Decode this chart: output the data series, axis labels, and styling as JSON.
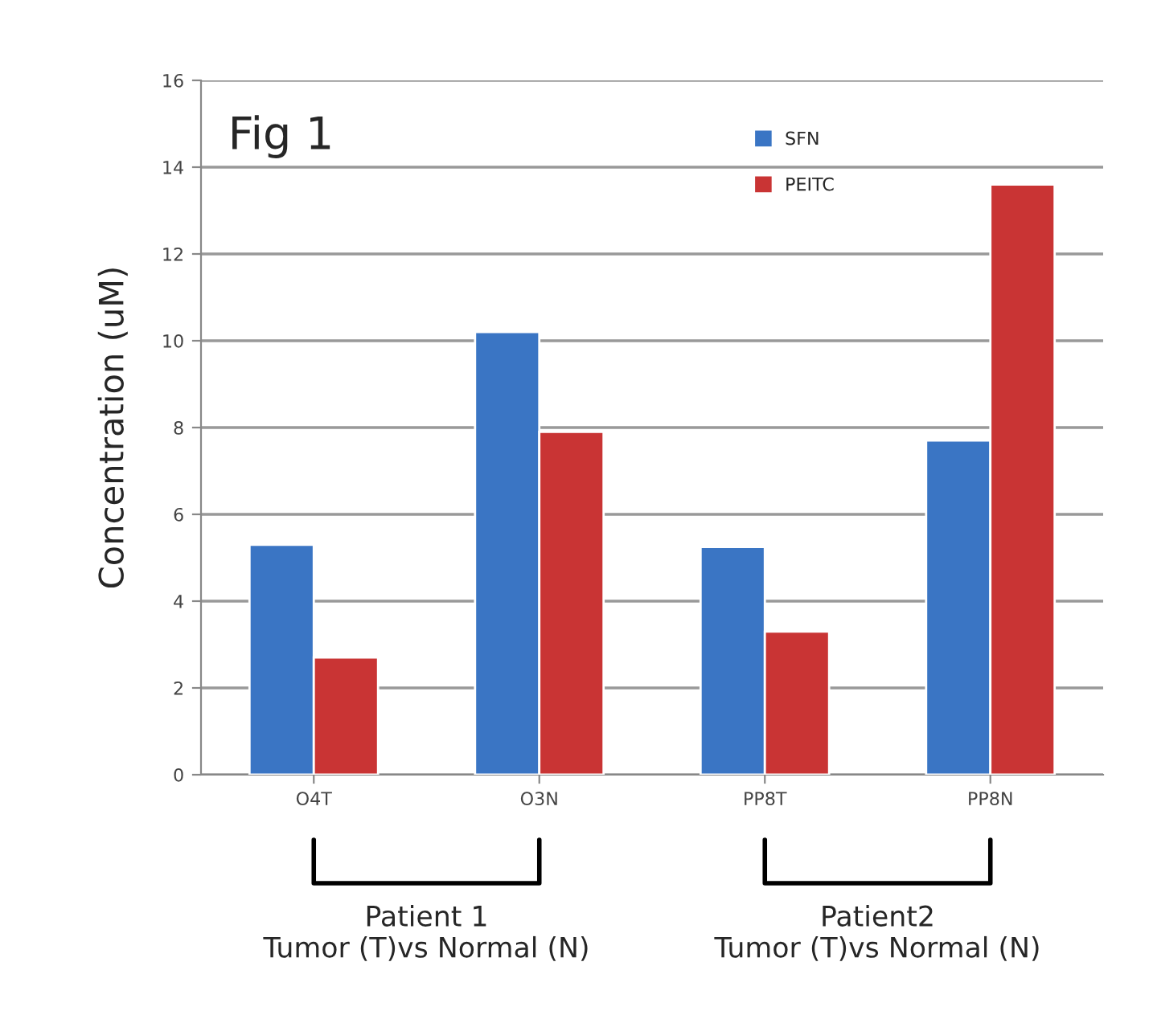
{
  "chart_data": {
    "type": "bar",
    "title": "Fig 1",
    "ylabel": "Concentration (uM)",
    "categories": [
      "O4T",
      "O3N",
      "PP8T",
      "PP8N"
    ],
    "series": [
      {
        "name": "SFN",
        "color": "#3a75c4",
        "values": [
          5.3,
          10.2,
          5.25,
          7.7
        ]
      },
      {
        "name": "PEITC",
        "color": "#c93434",
        "values": [
          2.7,
          7.9,
          3.3,
          13.6
        ]
      }
    ],
    "ylim": [
      0,
      16
    ],
    "yticks": [
      0,
      2,
      4,
      6,
      8,
      10,
      12,
      14,
      16
    ],
    "grid": "y",
    "legend": "top right",
    "annotations": [
      "Patient 1\nTumor (T)vs Normal (N)",
      "Patient2\nTumor (T)vs Normal (N)"
    ]
  }
}
